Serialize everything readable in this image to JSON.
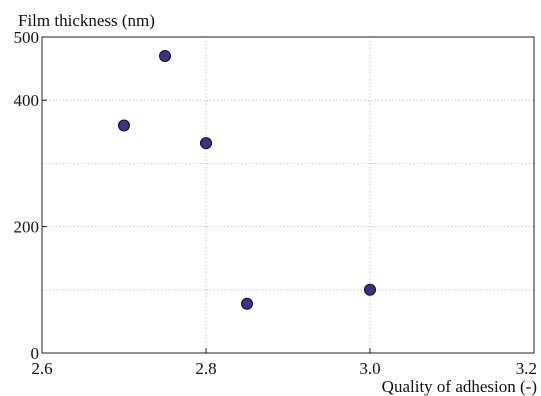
{
  "chart_data": {
    "type": "scatter",
    "title": "",
    "ylabel": "Film thickness (nm)",
    "xlabel": "Quality of adhesion (-)",
    "xlim": [
      2.6,
      3.2
    ],
    "ylim": [
      0,
      500
    ],
    "xticks": [
      2.6,
      2.8,
      3.0,
      3.2
    ],
    "xtick_labels": [
      "2.6",
      "2.8",
      "3.0",
      "3.2"
    ],
    "yticks": [
      0,
      200,
      400,
      500
    ],
    "ytick_labels": [
      "0",
      "200",
      "400",
      "500"
    ],
    "ygrid": [
      100,
      200,
      300,
      400,
      500
    ],
    "grid": true,
    "marker_color": "#3d2f8a",
    "marker_edge": "#111111",
    "points": [
      {
        "x": 2.7,
        "y": 360
      },
      {
        "x": 2.75,
        "y": 470
      },
      {
        "x": 2.8,
        "y": 332
      },
      {
        "x": 2.85,
        "y": 78
      },
      {
        "x": 3.0,
        "y": 100
      }
    ]
  }
}
